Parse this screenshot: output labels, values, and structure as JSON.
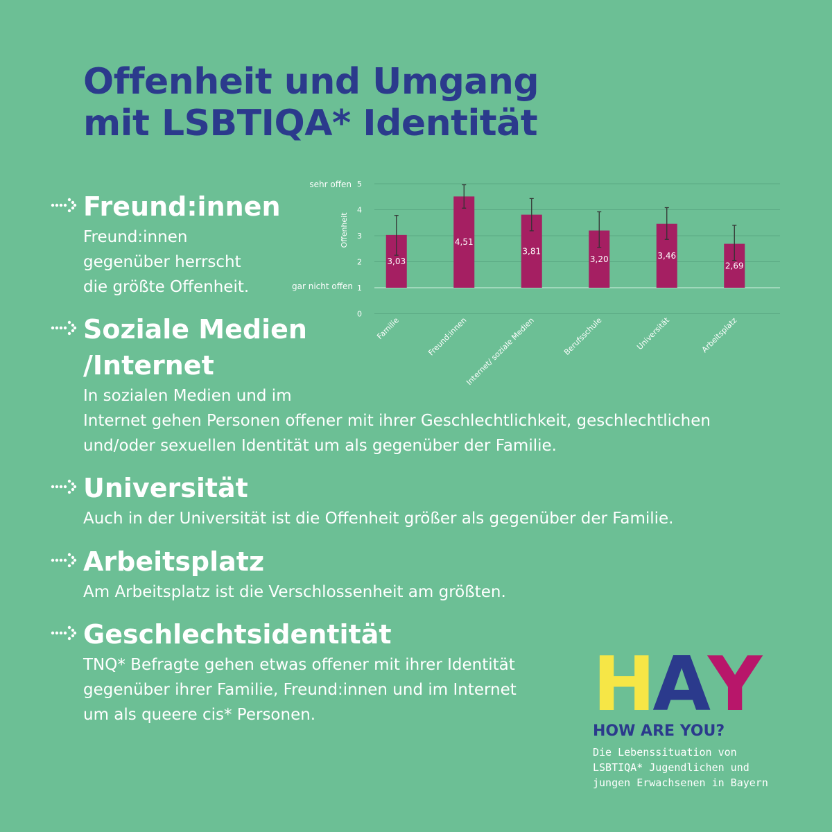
{
  "title": {
    "line1": "Offenheit und Umgang",
    "line2": "mit LSBTIQA* Identität"
  },
  "sections": [
    {
      "title_lines": [
        "Freund:innen"
      ],
      "body_lines": [
        "Freund:innen",
        "gegenüber herrscht",
        "die größte Offenheit."
      ]
    },
    {
      "title_lines": [
        "Soziale Medien",
        "/Internet"
      ],
      "body_lines": [
        "In sozialen Medien und im",
        "Internet gehen Personen offener mit ihrer Geschlechtlichkeit, geschlechtlichen",
        "und/oder sexuellen Identität um als gegenüber der Familie."
      ]
    },
    {
      "title_lines": [
        "Universität"
      ],
      "body_lines": [
        "Auch in der Universität ist die Offenheit größer als gegenüber der Familie."
      ]
    },
    {
      "title_lines": [
        "Arbeitsplatz"
      ],
      "body_lines": [
        "Am Arbeitsplatz ist die Verschlossenheit am größten."
      ]
    },
    {
      "title_lines": [
        "Geschlechtsidentität"
      ],
      "body_lines": [
        "TNQ* Befragte gehen etwas offener mit ihrer Identität",
        "gegenüber ihrer Familie, Freund:innen und im Internet",
        "um als queere cis* Personen."
      ]
    }
  ],
  "chart_data": {
    "type": "bar",
    "categories": [
      "Familie",
      "Freund:innen",
      "Internet/ soziale Medien",
      "Berufsschule",
      "Universität",
      "Arbeitsplatz"
    ],
    "values": [
      3.03,
      4.51,
      3.81,
      3.2,
      3.46,
      2.69
    ],
    "value_labels": [
      "3,03",
      "4,51",
      "3,81",
      "3,20",
      "3,46",
      "2,69"
    ],
    "error_low": [
      2.25,
      4.06,
      3.19,
      2.55,
      2.86,
      2.05
    ],
    "error_high": [
      3.78,
      4.96,
      4.43,
      3.92,
      4.08,
      3.4
    ],
    "ylabel": "Offenheit",
    "yticks": [
      0,
      1,
      2,
      3,
      4,
      5
    ],
    "ytick_annotations": {
      "top": "sehr offen",
      "bottom": "gar nicht offen"
    },
    "ylim": [
      0,
      5
    ],
    "bar_baseline": 1,
    "grid": true,
    "legend": "none",
    "colors": {
      "bar": "#a51f62",
      "grid": "#5aa883",
      "axis": "#9fd8bb",
      "tick_text": "#ffffff"
    }
  },
  "logo": {
    "letters": [
      {
        "char": "H",
        "color": "#f6e646"
      },
      {
        "char": "A",
        "color": "#2b3a8c"
      },
      {
        "char": "Y",
        "color": "#b8166a"
      }
    ],
    "subtitle": "HOW ARE YOU?",
    "desc_lines": [
      "Die Lebenssituation von",
      "LSBTIQA* Jugendlichen und",
      "jungen Erwachsenen in Bayern"
    ]
  },
  "colors": {
    "background": "#6cbf95",
    "title": "#2b3a8c",
    "text": "#ffffff"
  }
}
